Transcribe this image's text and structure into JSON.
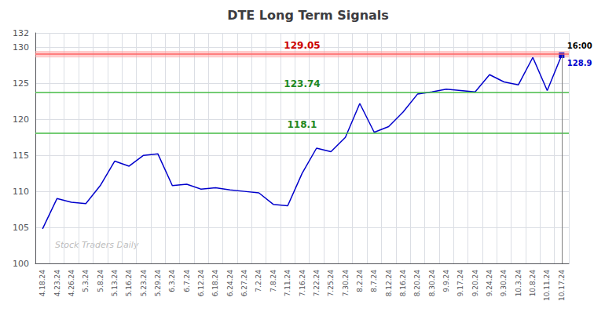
{
  "chart_data": {
    "type": "line",
    "title": "DTE Long Term Signals",
    "watermark": "Stock Traders Daily",
    "color": "#0000cc",
    "categories": [
      "4.18.24",
      "4.23.24",
      "4.26.24",
      "5.3.24",
      "5.8.24",
      "5.13.24",
      "5.16.24",
      "5.23.24",
      "5.29.24",
      "6.3.24",
      "6.7.24",
      "6.12.24",
      "6.18.24",
      "6.24.24",
      "6.27.24",
      "7.2.24",
      "7.8.24",
      "7.11.24",
      "7.16.24",
      "7.22.24",
      "7.25.24",
      "7.30.24",
      "8.2.24",
      "8.7.24",
      "8.12.24",
      "8.16.24",
      "8.20.24",
      "8.30.24",
      "9.9.24",
      "9.17.24",
      "9.20.24",
      "9.24.24",
      "9.30.24",
      "10.3.24",
      "10.8.24",
      "10.11.24",
      "10.17.24"
    ],
    "values": [
      104.8,
      109.0,
      108.5,
      108.3,
      110.8,
      114.2,
      113.5,
      115.0,
      115.2,
      110.8,
      111.0,
      110.3,
      110.5,
      110.2,
      110.0,
      109.8,
      108.2,
      108.0,
      112.5,
      116.0,
      115.5,
      117.5,
      122.2,
      118.2,
      119.0,
      121.0,
      123.5,
      123.8,
      124.2,
      124.0,
      123.8,
      126.2,
      125.2,
      124.8,
      128.6,
      124.0,
      128.9
    ],
    "ylim": [
      100,
      132
    ],
    "yticks": [
      100,
      105,
      110,
      115,
      120,
      125,
      130
    ],
    "grid": true,
    "hlines": [
      {
        "value": 129.05,
        "label": "129.05",
        "color": "#ff6666",
        "label_color": "#cc0000"
      },
      {
        "value": 123.74,
        "label": "123.74",
        "color": "#44bb44",
        "label_color": "#228822"
      },
      {
        "value": 118.1,
        "label": "118.1",
        "color": "#44bb44",
        "label_color": "#228822"
      }
    ],
    "band": {
      "low": 128.6,
      "high": 129.5,
      "color": "#ff9999"
    },
    "last_point_labels": [
      "16:00",
      "128.9"
    ]
  }
}
